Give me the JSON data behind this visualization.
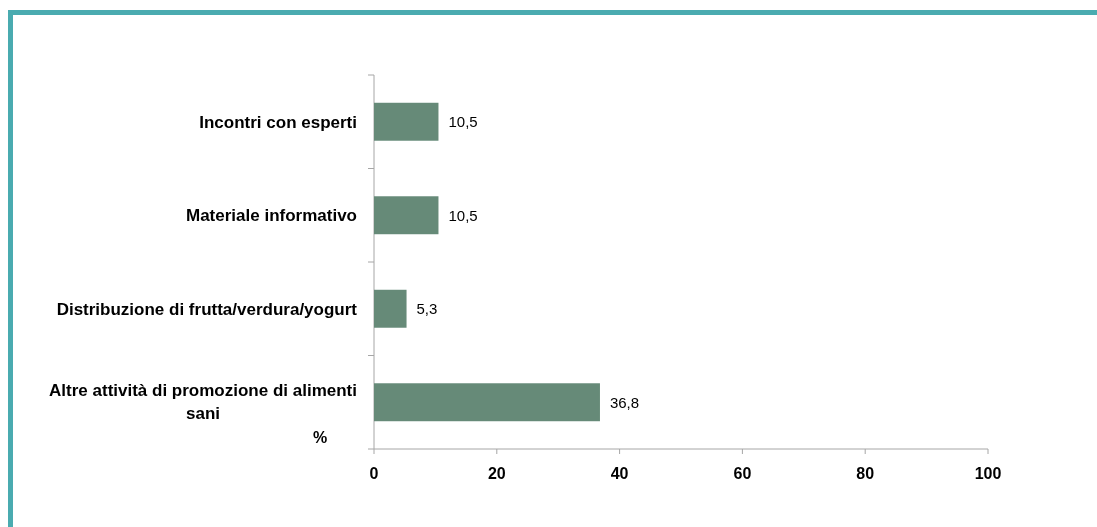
{
  "chart_data": {
    "type": "bar",
    "orientation": "horizontal",
    "categories": [
      "Incontri con esperti",
      "Materiale informativo",
      "Distribuzione di frutta/verdura/yogurt",
      "Altre attività di promozione di alimenti sani"
    ],
    "values": [
      10.5,
      10.5,
      5.3,
      36.8
    ],
    "value_labels": [
      "10,5",
      "10,5",
      "5,3",
      "36,8"
    ],
    "color": "#668a78",
    "xlabel": "%",
    "xlim": [
      0,
      100
    ],
    "xticks": [
      0,
      20,
      40,
      60,
      80,
      100
    ]
  }
}
